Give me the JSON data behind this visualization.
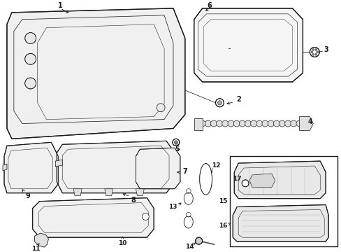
{
  "bg_color": "#ffffff",
  "line_color": "#1a1a1a",
  "fig_width": 4.89,
  "fig_height": 3.6,
  "dpi": 100,
  "lw": 0.75,
  "fs": 7.0
}
